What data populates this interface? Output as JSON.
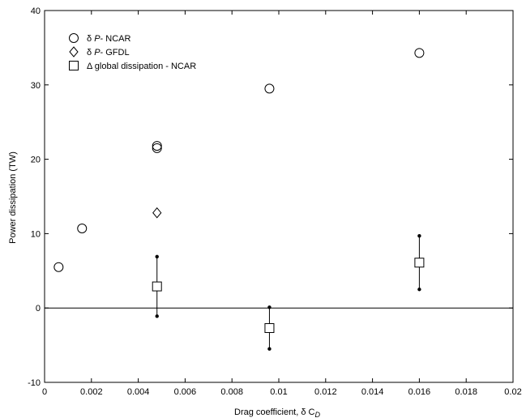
{
  "chart_data": {
    "type": "scatter",
    "title": "",
    "xlabel": "Drag coefficient, δ C",
    "xlabel_sub": "D",
    "ylabel": "Power dissipation (TW)",
    "xlim": [
      0,
      0.02
    ],
    "ylim": [
      -10,
      40
    ],
    "x_ticks": [
      "0",
      "0.002",
      "0.004",
      "0.006",
      "0.008",
      "0.01",
      "0.012",
      "0.014",
      "0.016",
      "0.018",
      "0.02"
    ],
    "y_ticks": [
      "-10",
      "0",
      "10",
      "20",
      "30",
      "40"
    ],
    "zero_line": true,
    "grid": false,
    "legend_position": "top-left",
    "series": [
      {
        "name_prefix": "δ ",
        "name_italic": "P",
        "name_suffix": "- NCAR",
        "marker": "circle",
        "points": [
          {
            "x": 0.0006,
            "y": 5.5
          },
          {
            "x": 0.0016,
            "y": 10.7
          },
          {
            "x": 0.0048,
            "y": 21.5
          },
          {
            "x": 0.0048,
            "y": 21.8
          },
          {
            "x": 0.0096,
            "y": 29.5
          },
          {
            "x": 0.016,
            "y": 34.3
          }
        ]
      },
      {
        "name_prefix": "δ ",
        "name_italic": "P",
        "name_suffix": "- GFDL",
        "marker": "diamond",
        "points": [
          {
            "x": 0.0048,
            "y": 12.8
          }
        ]
      },
      {
        "name_prefix": "Δ global dissipation - NCAR",
        "name_italic": "",
        "name_suffix": "",
        "marker": "square",
        "points": [
          {
            "x": 0.0048,
            "y": 2.9,
            "low": -1.1,
            "high": 6.9
          },
          {
            "x": 0.0096,
            "y": -2.7,
            "low": -5.5,
            "high": 0.1
          },
          {
            "x": 0.016,
            "y": 6.1,
            "low": 2.5,
            "high": 9.7
          }
        ]
      }
    ]
  }
}
